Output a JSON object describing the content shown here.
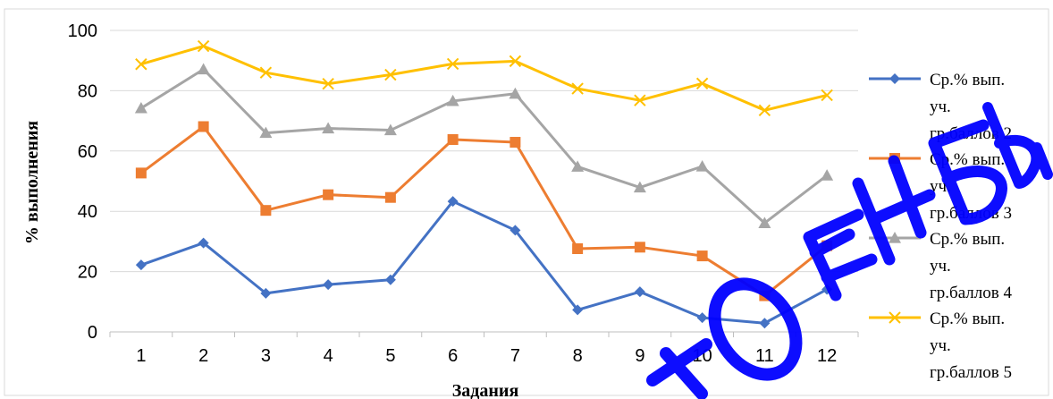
{
  "chart_data": {
    "type": "line",
    "title": "",
    "xlabel": "Задания",
    "ylabel": "% выполнения",
    "categories": [
      "1",
      "2",
      "3",
      "4",
      "5",
      "6",
      "7",
      "8",
      "9",
      "10",
      "11",
      "12"
    ],
    "ylim": [
      0,
      100
    ],
    "yticks": [
      0,
      20,
      40,
      60,
      80,
      100
    ],
    "grid": "horizontal",
    "legend": "right",
    "series": [
      {
        "name": "Ср.% вып. уч. гр.баллов 2",
        "legend_lines": [
          "Ср.% вып.",
          "уч.",
          "гр.баллов 2"
        ],
        "color": "#4472C4",
        "marker": "diamond",
        "values": [
          22.2,
          29.5,
          12.8,
          15.7,
          17.3,
          43.3,
          33.7,
          7.3,
          13.3,
          4.7,
          2.9,
          14.1
        ]
      },
      {
        "name": "Ср.% вып. уч. гр.баллов 3",
        "legend_lines": [
          "Ср.% вып.",
          "уч.",
          "гр.баллов 3"
        ],
        "color": "#ED7D31",
        "marker": "square",
        "values": [
          52.7,
          68.1,
          40.3,
          45.5,
          44.6,
          63.8,
          62.9,
          27.6,
          28.1,
          25.2,
          12.0,
          28.6
        ]
      },
      {
        "name": "Ср.% вып. уч. гр.баллов 4",
        "legend_lines": [
          "Ср.% вып.",
          "уч.",
          "гр.баллов 4"
        ],
        "color": "#A5A5A5",
        "marker": "triangle",
        "values": [
          74.2,
          87.1,
          66.0,
          67.5,
          66.9,
          76.6,
          79.0,
          54.8,
          47.9,
          54.9,
          36.1,
          51.9
        ]
      },
      {
        "name": "Ср.% вып. уч. гр.баллов 5",
        "legend_lines": [
          "Ср.% вып.",
          "уч.",
          "гр.баллов 5"
        ],
        "color": "#FFC000",
        "marker": "x",
        "values": [
          88.8,
          94.8,
          86.0,
          82.3,
          85.3,
          88.9,
          89.8,
          80.7,
          76.8,
          82.4,
          73.5,
          78.5
        ]
      }
    ]
  },
  "watermark": {
    "text": "КОМЕНЕНЫ",
    "color": "#0000FF"
  }
}
